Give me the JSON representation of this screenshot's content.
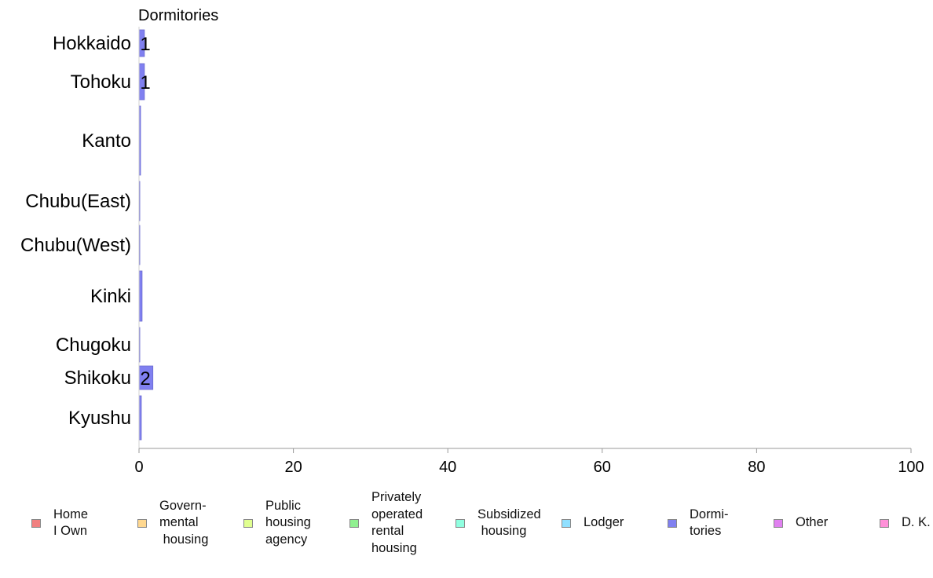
{
  "chart_data": {
    "type": "bar",
    "orientation": "horizontal",
    "title": "Dormitories",
    "categories": [
      "Hokkaido",
      "Tohoku",
      "Kanto",
      "Chubu(East)",
      "Chubu(West)",
      "Kinki",
      "Chugoku",
      "Shikoku",
      "Kyushu"
    ],
    "values": [
      0.7,
      0.7,
      0.2,
      0.05,
      0.05,
      0.4,
      0.05,
      1.8,
      0.3
    ],
    "data_labels": [
      "1",
      "1",
      "",
      "",
      "",
      "",
      "",
      "2",
      ""
    ],
    "xlim": [
      0,
      100
    ],
    "xticks": [
      "0",
      "20",
      "40",
      "60",
      "80",
      "100"
    ],
    "bar_color": "#8080f0",
    "grid": false
  },
  "legend": {
    "items": [
      {
        "label": "Home\nI Own",
        "color": "#f08080"
      },
      {
        "label": "Govern-\nmental\n housing",
        "color": "#ffd890"
      },
      {
        "label": "Public\nhousing\nagency",
        "color": "#e0ff90"
      },
      {
        "label": "Privately\noperated\nrental\nhousing",
        "color": "#90f090"
      },
      {
        "label": "Subsidized\n housing",
        "color": "#90ffe0"
      },
      {
        "label": "Lodger",
        "color": "#90e0ff"
      },
      {
        "label": "Dormi-\ntories",
        "color": "#8080f0"
      },
      {
        "label": "Other",
        "color": "#e080f0"
      },
      {
        "label": "D. K.",
        "color": "#ff90d8"
      }
    ]
  }
}
